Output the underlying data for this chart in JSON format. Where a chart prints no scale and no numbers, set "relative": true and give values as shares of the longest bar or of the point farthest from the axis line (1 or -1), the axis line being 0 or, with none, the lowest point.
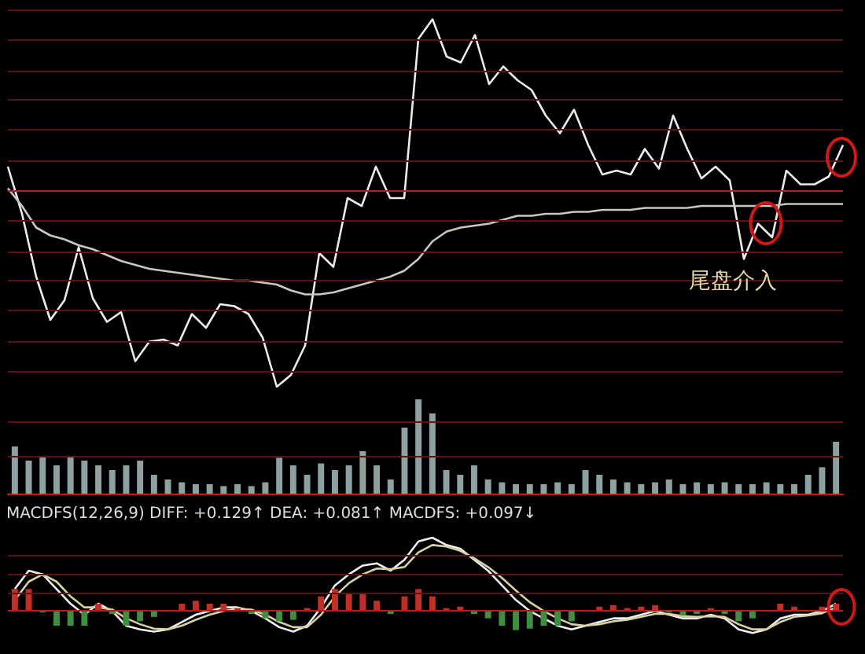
{
  "chart_data": [
    {
      "type": "line",
      "relative": true,
      "annotations": [
        "尾盘介入"
      ],
      "ref_lines": [
        {
          "axis": "y",
          "value": 0,
          "color": "#b02020"
        },
        {
          "axis": "y",
          "value": 0.92,
          "color": "#5a1414"
        },
        {
          "axis": "y",
          "value": 0.77,
          "color": "#5a1414"
        },
        {
          "axis": "y",
          "value": 0.61,
          "color": "#5a1414"
        },
        {
          "axis": "y",
          "value": 0.46,
          "color": "#5a1414"
        },
        {
          "axis": "y",
          "value": 0.31,
          "color": "#5a1414"
        },
        {
          "axis": "y",
          "value": 0.15,
          "color": "#5a1414"
        },
        {
          "axis": "y",
          "value": -0.15,
          "color": "#5a1414"
        },
        {
          "axis": "y",
          "value": -0.31,
          "color": "#5a1414"
        },
        {
          "axis": "y",
          "value": -0.46,
          "color": "#5a1414"
        },
        {
          "axis": "y",
          "value": -0.61,
          "color": "#5a1414"
        },
        {
          "axis": "y",
          "value": -0.77,
          "color": "#5a1414"
        },
        {
          "axis": "y",
          "value": -0.92,
          "color": "#5a1414"
        }
      ],
      "categories": [
        null,
        null,
        null,
        null,
        null,
        null,
        null,
        null,
        null,
        null,
        null,
        null,
        null,
        null,
        null,
        null,
        null,
        null,
        null,
        null,
        null,
        null,
        null,
        null,
        null,
        null,
        null,
        null,
        null,
        null,
        null,
        null,
        null,
        null,
        null,
        null,
        null,
        null,
        null,
        null,
        null,
        null,
        null,
        null,
        null,
        null,
        null,
        null,
        null,
        null,
        null,
        null,
        null,
        null,
        null,
        null,
        null,
        null,
        null,
        null
      ],
      "series": [
        {
          "color": "#ececec",
          "values": [
            0.12,
            -0.12,
            -0.44,
            -0.66,
            -0.56,
            -0.29,
            -0.55,
            -0.67,
            -0.62,
            -0.87,
            -0.77,
            -0.76,
            -0.79,
            -0.63,
            -0.7,
            -0.58,
            -0.59,
            -0.63,
            -0.75,
            -1,
            -0.94,
            -0.79,
            -0.32,
            -0.39,
            -0.04,
            -0.08,
            0.12,
            -0.04,
            -0.04,
            0.77,
            0.87,
            0.68,
            0.65,
            0.79,
            0.54,
            0.63,
            0.56,
            0.51,
            0.38,
            0.29,
            0.41,
            0.23,
            0.08,
            0.1,
            0.08,
            0.21,
            0.11,
            0.38,
            0.21,
            0.06,
            0.12,
            0.05,
            -0.35,
            -0.17,
            -0.24,
            0.1,
            0.03,
            0.03,
            0.07,
            0.23
          ]
        },
        {
          "color": "#c8c8c0",
          "values": [
            0.01,
            -0.08,
            -0.19,
            -0.23,
            -0.25,
            -0.28,
            -0.3,
            -0.33,
            -0.36,
            -0.38,
            -0.4,
            -0.41,
            -0.42,
            -0.43,
            -0.44,
            -0.45,
            -0.46,
            -0.46,
            -0.47,
            -0.48,
            -0.51,
            -0.53,
            -0.53,
            -0.52,
            -0.5,
            -0.48,
            -0.46,
            -0.44,
            -0.41,
            -0.35,
            -0.26,
            -0.21,
            -0.19,
            -0.18,
            -0.17,
            -0.15,
            -0.13,
            -0.13,
            -0.12,
            -0.12,
            -0.11,
            -0.11,
            -0.1,
            -0.1,
            -0.1,
            -0.09,
            -0.09,
            -0.09,
            -0.09,
            -0.08,
            -0.08,
            -0.08,
            -0.08,
            -0.08,
            -0.08,
            -0.07,
            -0.07,
            -0.07,
            -0.07,
            -0.07
          ]
        }
      ]
    },
    {
      "type": "bar",
      "relative": true,
      "ref_lines": [
        {
          "axis": "y",
          "value": 0.4,
          "color": "#5a1414"
        },
        {
          "axis": "y",
          "value": 0.77,
          "color": "#5a1414"
        }
      ],
      "categories": [
        null,
        null,
        null,
        null,
        null,
        null,
        null,
        null,
        null,
        null,
        null,
        null,
        null,
        null,
        null,
        null,
        null,
        null,
        null,
        null,
        null,
        null,
        null,
        null,
        null,
        null,
        null,
        null,
        null,
        null,
        null,
        null,
        null,
        null,
        null,
        null,
        null,
        null,
        null,
        null,
        null,
        null,
        null,
        null,
        null,
        null,
        null,
        null,
        null,
        null,
        null,
        null,
        null,
        null,
        null,
        null,
        null,
        null,
        null,
        null
      ],
      "series": [
        {
          "color": "#8fa0a0",
          "values": [
            0.5,
            0.35,
            0.4,
            0.3,
            0.4,
            0.35,
            0.3,
            0.25,
            0.3,
            0.35,
            0.2,
            0.15,
            0.12,
            0.1,
            0.1,
            0.08,
            0.1,
            0.08,
            0.12,
            0.38,
            0.3,
            0.2,
            0.32,
            0.25,
            0.3,
            0.45,
            0.3,
            0.15,
            0.7,
            1,
            0.85,
            0.25,
            0.2,
            0.3,
            0.15,
            0.12,
            0.1,
            0.1,
            0.1,
            0.12,
            0.1,
            0.25,
            0.2,
            0.15,
            0.12,
            0.1,
            0.12,
            0.15,
            0.1,
            0.12,
            0.1,
            0.12,
            0.1,
            0.1,
            0.12,
            0.1,
            0.1,
            0.2,
            0.28,
            0.55
          ]
        }
      ]
    },
    {
      "type": "bar",
      "relative": true,
      "ref_lines": [
        {
          "axis": "y",
          "value": 0,
          "color": "#b02020"
        },
        {
          "axis": "y",
          "value": 0.25,
          "color": "#5a1414"
        },
        {
          "axis": "y",
          "value": 0.5,
          "color": "#5a1414"
        },
        {
          "axis": "y",
          "value": 0.75,
          "color": "#5a1414"
        }
      ],
      "annotations": [
        "MACDFS(12,26,9) DIFF: +0.129↑ DEA: +0.081↑ MACDFS: +0.097↓"
      ],
      "categories": [
        null,
        null,
        null,
        null,
        null,
        null,
        null,
        null,
        null,
        null,
        null,
        null,
        null,
        null,
        null,
        null,
        null,
        null,
        null,
        null,
        null,
        null,
        null,
        null,
        null,
        null,
        null,
        null,
        null,
        null,
        null,
        null,
        null,
        null,
        null,
        null,
        null,
        null,
        null,
        null,
        null,
        null,
        null,
        null,
        null,
        null,
        null,
        null,
        null,
        null,
        null,
        null,
        null,
        null,
        null,
        null,
        null,
        null,
        null,
        null
      ],
      "series": [
        {
          "type": "bar",
          "values": [
            0.3,
            0.3,
            -0.02,
            -0.2,
            -0.2,
            -0.2,
            0.1,
            -0.04,
            -0.2,
            -0.14,
            -0.08,
            null,
            0.1,
            0.14,
            0.1,
            0.1,
            0.04,
            -0.04,
            -0.1,
            -0.14,
            -0.12,
            0.04,
            0.2,
            0.3,
            0.24,
            0.24,
            0.14,
            -0.04,
            0.2,
            0.3,
            0.2,
            0.04,
            0.06,
            -0.04,
            -0.1,
            -0.2,
            -0.26,
            -0.24,
            -0.2,
            -0.2,
            -0.14,
            null,
            0.06,
            0.08,
            0.04,
            0.06,
            0.08,
            -0.02,
            -0.06,
            -0.04,
            0.04,
            -0.04,
            -0.14,
            -0.1,
            null,
            0.1,
            0.06,
            null,
            0.06,
            0.1
          ],
          "colors": [
            "#c03028",
            "#c03028",
            "#3c9040",
            "#3c9040",
            "#3c9040",
            "#3c9040",
            "#c03028",
            "#3c9040",
            "#3c9040",
            "#3c9040",
            "#3c9040",
            "#c03028",
            "#c03028",
            "#c03028",
            "#c03028",
            "#c03028",
            "#c03028",
            "#3c9040",
            "#3c9040",
            "#3c9040",
            "#3c9040",
            "#c03028",
            "#c03028",
            "#c03028",
            "#c03028",
            "#c03028",
            "#c03028",
            "#3c9040",
            "#c03028",
            "#c03028",
            "#c03028",
            "#c03028",
            "#c03028",
            "#3c9040",
            "#3c9040",
            "#3c9040",
            "#3c9040",
            "#3c9040",
            "#3c9040",
            "#3c9040",
            "#3c9040",
            "#c03028",
            "#c03028",
            "#c03028",
            "#c03028",
            "#c03028",
            "#c03028",
            "#3c9040",
            "#3c9040",
            "#3c9040",
            "#c03028",
            "#3c9040",
            "#3c9040",
            "#3c9040",
            "#c03028",
            "#c03028",
            "#c03028",
            "#c03028",
            "#c03028",
            "#c03028"
          ]
        },
        {
          "type": "line",
          "color": "#f0f0f0",
          "values": [
            0.3,
            0.55,
            0.5,
            0.3,
            0.1,
            -0.05,
            0.1,
            0,
            -0.2,
            -0.25,
            -0.28,
            -0.25,
            -0.15,
            -0.05,
            0,
            0.05,
            0.05,
            0,
            -0.1,
            -0.22,
            -0.28,
            -0.2,
            0.05,
            0.35,
            0.5,
            0.62,
            0.65,
            0.55,
            0.7,
            0.95,
            1,
            0.9,
            0.85,
            0.7,
            0.55,
            0.35,
            0.15,
            0,
            -0.1,
            -0.2,
            -0.25,
            -0.2,
            -0.15,
            -0.1,
            -0.1,
            -0.05,
            0,
            -0.05,
            -0.1,
            -0.1,
            -0.05,
            -0.1,
            -0.25,
            -0.3,
            -0.25,
            -0.1,
            -0.05,
            -0.05,
            0,
            0.1
          ]
        },
        {
          "type": "line",
          "color": "#d8d0a0",
          "values": [
            0.15,
            0.4,
            0.5,
            0.4,
            0.2,
            0.05,
            0.05,
            0.02,
            -0.1,
            -0.18,
            -0.24,
            -0.25,
            -0.2,
            -0.12,
            -0.05,
            0,
            0.03,
            0.02,
            -0.05,
            -0.15,
            -0.22,
            -0.22,
            -0.05,
            0.2,
            0.38,
            0.5,
            0.58,
            0.57,
            0.6,
            0.8,
            0.9,
            0.88,
            0.82,
            0.72,
            0.6,
            0.45,
            0.28,
            0.12,
            0,
            -0.1,
            -0.18,
            -0.2,
            -0.18,
            -0.14,
            -0.12,
            -0.08,
            -0.04,
            -0.04,
            -0.07,
            -0.08,
            -0.07,
            -0.08,
            -0.18,
            -0.25,
            -0.25,
            -0.15,
            -0.08,
            -0.06,
            -0.03,
            0.05
          ]
        }
      ]
    }
  ]
}
